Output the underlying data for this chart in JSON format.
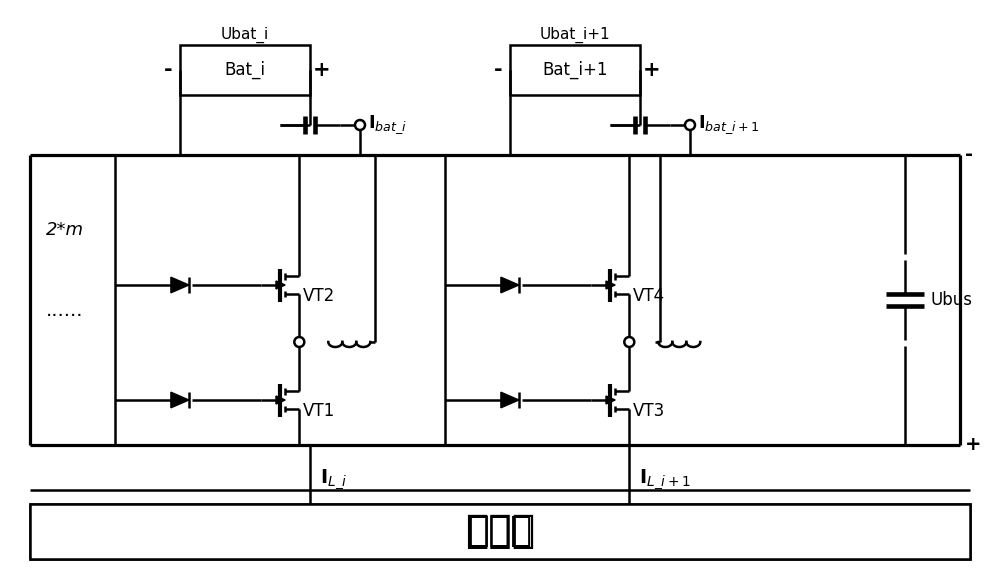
{
  "title": "控制器",
  "bg_color": "#ffffff",
  "line_color": "#000000",
  "lw": 1.8,
  "fig_width": 10.0,
  "fig_height": 5.84,
  "dpi": 100,
  "label_IL_i": "$\\mathbf{I}_{L\\_i}$",
  "label_IL_i1": "$\\mathbf{I}_{L\\_i+1}$",
  "label_VT1": "VT1",
  "label_VT2": "VT2",
  "label_VT3": "VT3",
  "label_VT4": "VT4",
  "label_Ibat_i": "$\\mathbf{I}_{bat\\_i}$",
  "label_Ibat_i1": "$\\mathbf{I}_{bat\\_i+1}$",
  "label_Bat_i": "Bat_i",
  "label_Bat_i1": "Bat_i+1",
  "label_Ubat_i": "Ubat_i",
  "label_Ubat_i1": "Ubat_i+1",
  "label_Ubus": "Ubus",
  "label_2m": "2*m",
  "label_dots": "......",
  "label_plus_bus": "+",
  "label_minus_bus": "-"
}
